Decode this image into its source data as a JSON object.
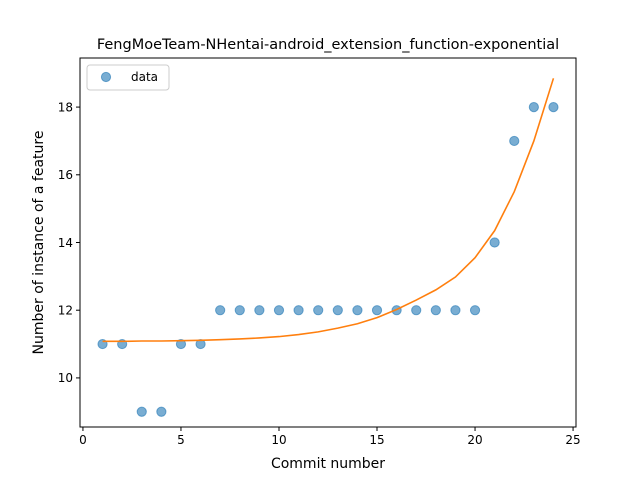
{
  "chart_data": {
    "type": "scatter",
    "title": "FengMoeTeam-NHentai-android_extension_function-exponential",
    "xlabel": "Commit number",
    "ylabel": "Number of instance of a feature",
    "xlim": [
      -0.15,
      25.15
    ],
    "ylim": [
      8.55,
      19.45
    ],
    "xticks": [
      0,
      5,
      10,
      15,
      20,
      25
    ],
    "yticks": [
      10,
      12,
      14,
      16,
      18
    ],
    "grid": false,
    "legend": {
      "placement": "top-left",
      "entries": [
        "data"
      ]
    },
    "colors": {
      "data": "#1f77b4",
      "fit": "#ff7f0e"
    },
    "series": [
      {
        "name": "data",
        "kind": "scatter",
        "x": [
          1,
          2,
          3,
          4,
          5,
          6,
          7,
          8,
          9,
          10,
          11,
          12,
          13,
          14,
          15,
          16,
          17,
          18,
          19,
          20,
          21,
          22,
          23,
          24
        ],
        "y": [
          11,
          11,
          9,
          9,
          11,
          11,
          12,
          12,
          12,
          12,
          12,
          12,
          12,
          12,
          12,
          12,
          12,
          12,
          12,
          12,
          14,
          17,
          18,
          18
        ]
      },
      {
        "kind": "line",
        "x": [
          1,
          2,
          3,
          4,
          5,
          6,
          7,
          8,
          9,
          10,
          11,
          12,
          13,
          14,
          15,
          16,
          17,
          18,
          19,
          20,
          21,
          22,
          23,
          24
        ],
        "y": [
          11.08,
          11.08,
          11.09,
          11.09,
          11.1,
          11.11,
          11.13,
          11.15,
          11.18,
          11.22,
          11.28,
          11.36,
          11.47,
          11.6,
          11.78,
          12.02,
          12.3,
          12.6,
          12.98,
          13.55,
          14.35,
          15.5,
          17.0,
          18.85
        ]
      }
    ]
  }
}
